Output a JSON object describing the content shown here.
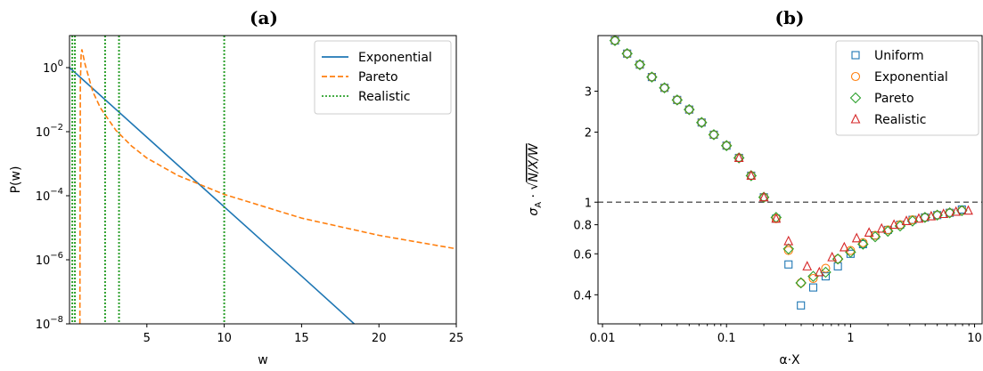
{
  "chart_data": [
    {
      "type": "line",
      "panel_title": "(a)",
      "xlabel": "w",
      "ylabel": "P(w)",
      "yscale": "log",
      "xlim": [
        0,
        25
      ],
      "ylim": [
        1e-08,
        10
      ],
      "xticks": [
        5,
        10,
        15,
        20,
        25
      ],
      "xtick_labels": [
        "5",
        "10",
        "15",
        "20",
        "25"
      ],
      "yticks": [
        1,
        0.01,
        0.0001,
        1e-06,
        1e-08
      ],
      "ytick_labels": [
        {
          "base": "10",
          "exp": "0"
        },
        {
          "base": "10",
          "exp": "−2"
        },
        {
          "base": "10",
          "exp": "−4"
        },
        {
          "base": "10",
          "exp": "−6"
        },
        {
          "base": "10",
          "exp": "−8"
        }
      ],
      "legend_position": "top-right",
      "series": [
        {
          "name": "Exponential",
          "style": "solid",
          "color": "#1f77b4",
          "x": [
            0,
            2.5,
            5,
            7.5,
            10,
            12.5,
            15,
            17.5,
            18.4
          ],
          "y": [
            1.0,
            0.082,
            0.0067,
            0.00055,
            4.5e-05,
            3.7e-06,
            3.1e-07,
            2.5e-08,
            1e-08
          ]
        },
        {
          "name": "Pareto",
          "style": "dashed",
          "color": "#ff7f0e",
          "x": [
            0.67,
            0.7,
            0.75,
            0.8,
            1,
            1.5,
            2,
            3,
            4,
            5,
            7,
            10,
            15,
            20,
            25
          ],
          "y": [
            1e-08,
            0.3,
            2.5,
            3.7,
            1.3,
            0.18,
            0.055,
            0.011,
            0.0036,
            0.0015,
            0.00043,
            0.00011,
            2e-05,
            5.8e-06,
            2.2e-06
          ]
        },
        {
          "name": "Realistic",
          "style": "dotted",
          "color": "#2ca02c",
          "type": "vlines",
          "x": [
            0.18,
            0.35,
            2.3,
            3.2,
            10.0
          ]
        }
      ]
    },
    {
      "type": "scatter",
      "panel_title": "(b)",
      "xlabel": "α·X",
      "ylabel": "σ_A · √(N/X/W)",
      "ylabel_parts": {
        "sigma": "σ",
        "sub": "A",
        "dot": " · ",
        "root": "N/X/W"
      },
      "xscale": "log",
      "yscale": "log",
      "xlim": [
        0.0092,
        11.5
      ],
      "ylim": [
        0.3,
        5.2
      ],
      "xticks": [
        0.01,
        0.1,
        1,
        10
      ],
      "xtick_labels": [
        "0.01",
        "0.1",
        "1",
        "10"
      ],
      "yticks": [
        3,
        2,
        1,
        0.8,
        0.6,
        0.4
      ],
      "ytick_labels": [
        "3",
        "2",
        "1",
        "0.8",
        "0.6",
        "0.4"
      ],
      "hline": {
        "y": 1,
        "style": "dashed",
        "color": "#606060"
      },
      "legend_position": "top-right",
      "series": [
        {
          "name": "Uniform",
          "marker": "square",
          "color": "#1f77b4",
          "x": [
            0.0126,
            0.0158,
            0.02,
            0.025,
            0.0316,
            0.04,
            0.05,
            0.063,
            0.079,
            0.1,
            0.126,
            0.158,
            0.2,
            0.251,
            0.316,
            0.398,
            0.5,
            0.63,
            0.79,
            1.0,
            1.26,
            1.58,
            2.0,
            2.51,
            3.16,
            3.98,
            5.0,
            6.3,
            7.9
          ],
          "y": [
            4.95,
            4.35,
            3.9,
            3.45,
            3.1,
            2.75,
            2.5,
            2.2,
            1.95,
            1.75,
            1.55,
            1.3,
            1.05,
            0.85,
            0.54,
            0.36,
            0.43,
            0.48,
            0.53,
            0.6,
            0.66,
            0.72,
            0.76,
            0.8,
            0.84,
            0.86,
            0.88,
            0.9,
            0.93
          ]
        },
        {
          "name": "Exponential",
          "marker": "circle",
          "color": "#ff7f0e",
          "x": [
            0.0126,
            0.0158,
            0.02,
            0.025,
            0.0316,
            0.04,
            0.05,
            0.063,
            0.079,
            0.1,
            0.126,
            0.158,
            0.2,
            0.251,
            0.316,
            0.398,
            0.5,
            0.63,
            0.79,
            1.0,
            1.26,
            1.58,
            2.0,
            2.51,
            3.16,
            3.98,
            5.0,
            6.3,
            7.9
          ],
          "y": [
            4.95,
            4.35,
            3.9,
            3.45,
            3.1,
            2.75,
            2.5,
            2.2,
            1.95,
            1.75,
            1.55,
            1.3,
            1.05,
            0.85,
            0.62,
            0.45,
            0.47,
            0.52,
            0.57,
            0.62,
            0.67,
            0.72,
            0.76,
            0.8,
            0.84,
            0.86,
            0.88,
            0.9,
            0.92
          ]
        },
        {
          "name": "Pareto",
          "marker": "diamond",
          "color": "#2ca02c",
          "x": [
            0.0126,
            0.0158,
            0.02,
            0.025,
            0.0316,
            0.04,
            0.05,
            0.063,
            0.079,
            0.1,
            0.126,
            0.158,
            0.2,
            0.251,
            0.316,
            0.398,
            0.5,
            0.63,
            0.79,
            1.0,
            1.26,
            1.58,
            2.0,
            2.51,
            3.16,
            3.98,
            5.0,
            6.3,
            7.9
          ],
          "y": [
            4.95,
            4.35,
            3.9,
            3.45,
            3.1,
            2.75,
            2.5,
            2.2,
            1.95,
            1.75,
            1.55,
            1.3,
            1.05,
            0.86,
            0.63,
            0.45,
            0.48,
            0.5,
            0.57,
            0.61,
            0.66,
            0.71,
            0.75,
            0.79,
            0.83,
            0.86,
            0.88,
            0.9,
            0.92
          ]
        },
        {
          "name": "Realistic",
          "marker": "triangle",
          "color": "#d62728",
          "x": [
            0.126,
            0.158,
            0.2,
            0.251,
            0.316,
            0.447,
            0.56,
            0.71,
            0.89,
            1.12,
            1.41,
            1.78,
            2.24,
            2.82,
            3.55,
            4.47,
            5.62,
            7.08,
            8.9
          ],
          "y": [
            1.55,
            1.3,
            1.05,
            0.85,
            0.68,
            0.53,
            0.5,
            0.58,
            0.64,
            0.7,
            0.74,
            0.77,
            0.8,
            0.83,
            0.85,
            0.87,
            0.89,
            0.91,
            0.92
          ]
        }
      ]
    }
  ]
}
